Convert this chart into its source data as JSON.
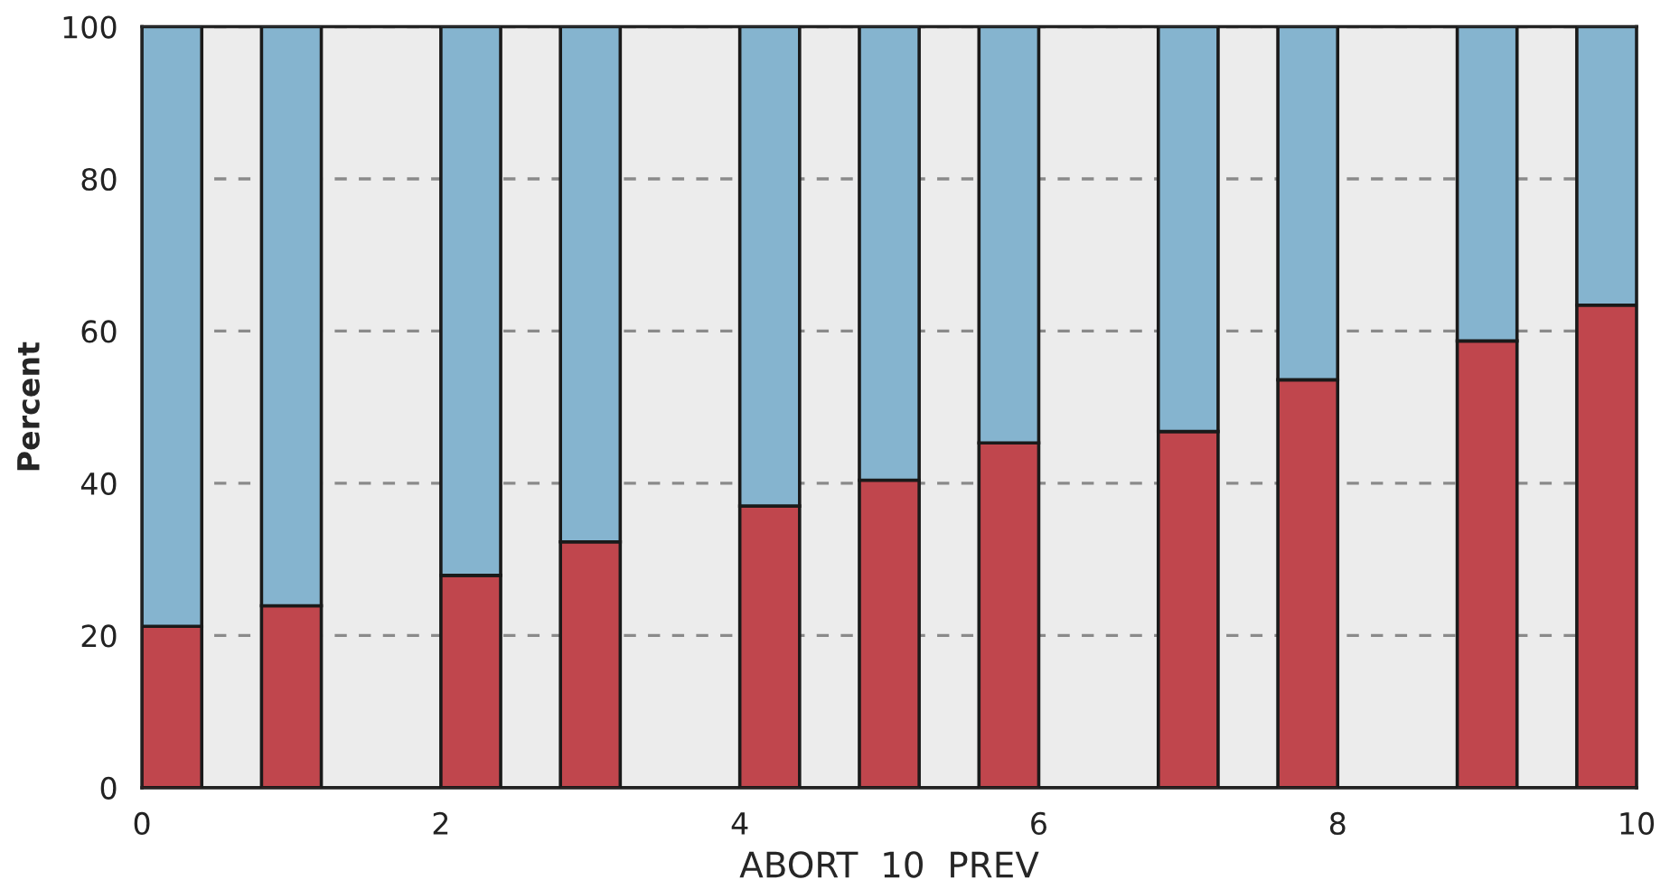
{
  "chart_data": {
    "type": "bar",
    "stacked": true,
    "xlabel": "ABORT  10  PREV",
    "ylabel": "Percent",
    "x": [
      0.2,
      1.0,
      2.2,
      3.0,
      4.2,
      5.0,
      5.8,
      7.0,
      7.8,
      9.0,
      9.8
    ],
    "series": [
      {
        "color": "#c0464d",
        "values": [
          21.2,
          23.9,
          27.9,
          32.3,
          37.0,
          40.4,
          45.3,
          46.8,
          53.6,
          58.7,
          63.4
        ]
      },
      {
        "color": "#85b4cf",
        "values": [
          78.8,
          76.1,
          72.1,
          67.7,
          63.0,
          59.6,
          54.7,
          53.2,
          46.4,
          41.3,
          36.6
        ]
      }
    ],
    "xlim": [
      0,
      10
    ],
    "xticks": [
      0,
      2,
      4,
      6,
      8,
      10
    ],
    "ylim": [
      0,
      100
    ],
    "yticks": [
      0,
      20,
      40,
      60,
      80,
      100
    ],
    "grid": "y"
  }
}
